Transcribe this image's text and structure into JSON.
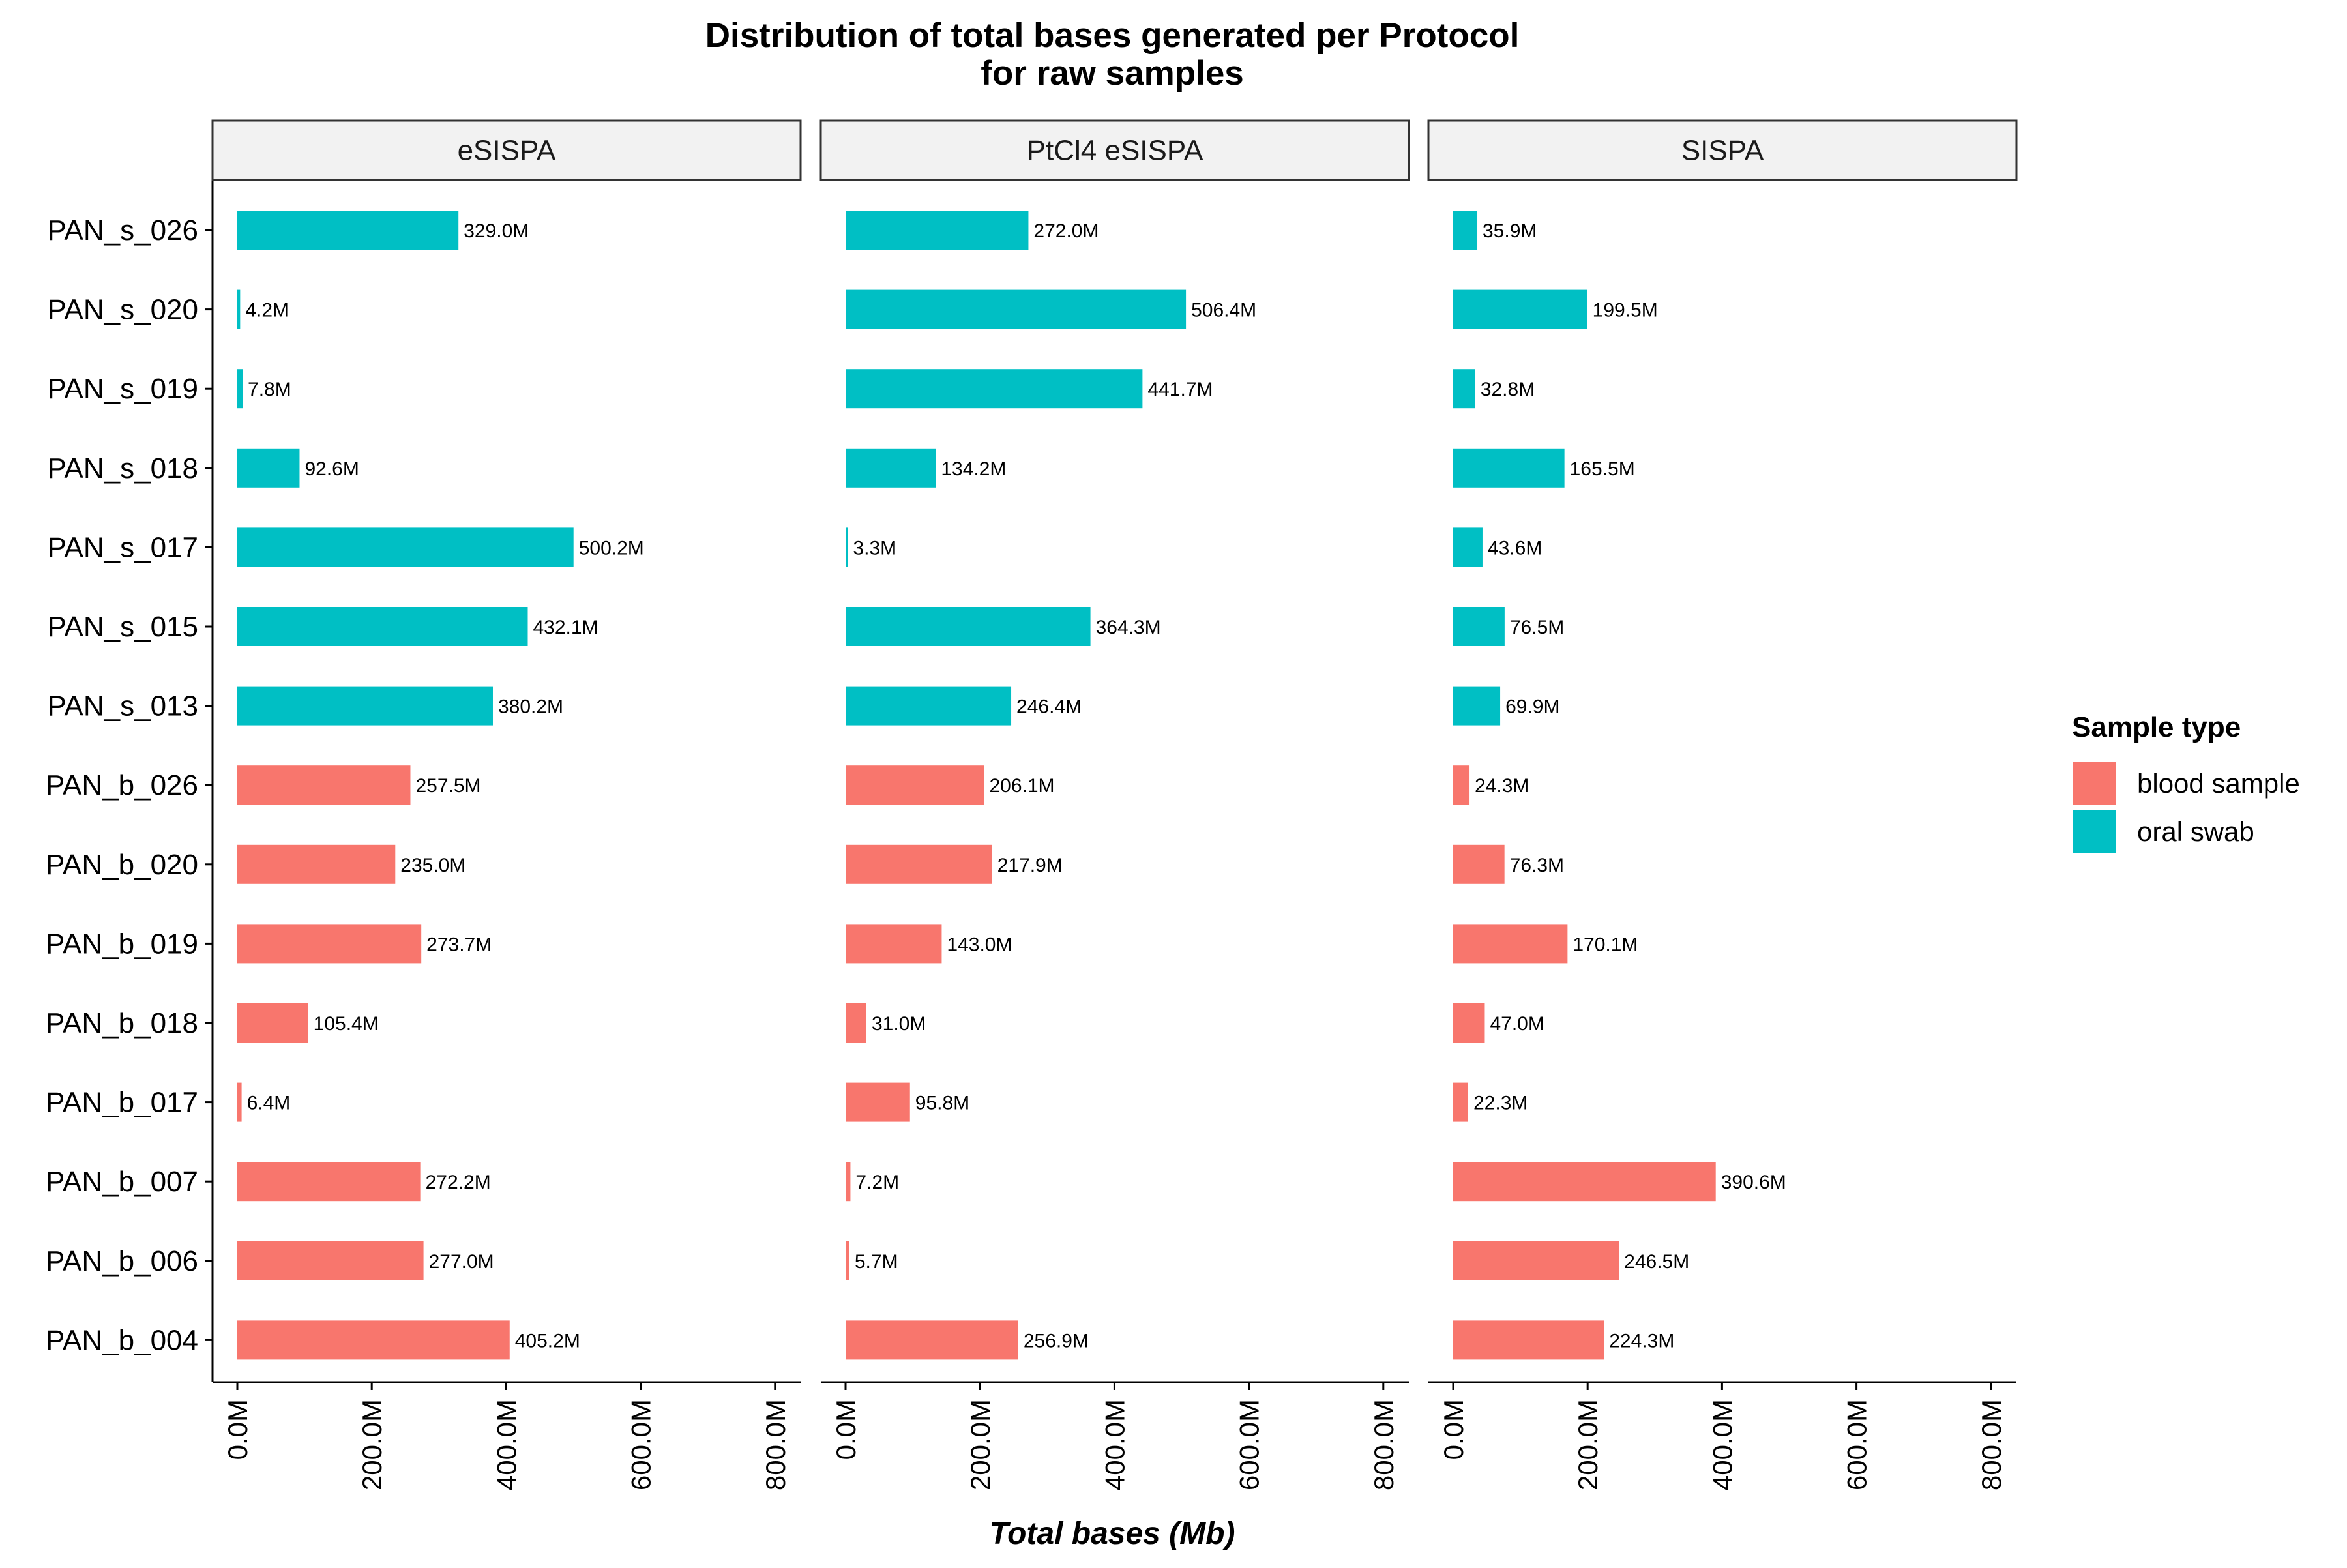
{
  "chart_data": {
    "type": "bar",
    "orientation": "horizontal",
    "title": "Distribution of total bases generated per Protocol\nfor raw samples",
    "xlabel": "Total bases (Mb)",
    "ylabel": "",
    "xlim": [
      0,
      800
    ],
    "x_ticks": [
      0,
      200,
      400,
      600,
      800
    ],
    "x_tick_labels": [
      "0.0M",
      "200.0M",
      "400.0M",
      "600.0M",
      "800.0M"
    ],
    "grid": false,
    "legend": {
      "title": "Sample type",
      "position": "right",
      "entries": [
        {
          "name": "blood sample",
          "color": "#F8766D"
        },
        {
          "name": "oral swab",
          "color": "#00BFC4"
        }
      ]
    },
    "categories": [
      "PAN_s_026",
      "PAN_s_020",
      "PAN_s_019",
      "PAN_s_018",
      "PAN_s_017",
      "PAN_s_015",
      "PAN_s_013",
      "PAN_b_026",
      "PAN_b_020",
      "PAN_b_019",
      "PAN_b_018",
      "PAN_b_017",
      "PAN_b_007",
      "PAN_b_006",
      "PAN_b_004"
    ],
    "category_types": [
      "oral swab",
      "oral swab",
      "oral swab",
      "oral swab",
      "oral swab",
      "oral swab",
      "oral swab",
      "blood sample",
      "blood sample",
      "blood sample",
      "blood sample",
      "blood sample",
      "blood sample",
      "blood sample",
      "blood sample"
    ],
    "panels": [
      {
        "name": "eSISPA",
        "values": [
          329.0,
          4.2,
          7.8,
          92.6,
          500.2,
          432.1,
          380.2,
          257.5,
          235.0,
          273.7,
          105.4,
          6.4,
          272.2,
          277.0,
          405.2
        ],
        "labels": [
          "329.0M",
          "4.2M",
          "7.8M",
          "92.6M",
          "500.2M",
          "432.1M",
          "380.2M",
          "257.5M",
          "235.0M",
          "273.7M",
          "105.4M",
          "6.4M",
          "272.2M",
          "277.0M",
          "405.2M"
        ]
      },
      {
        "name": "PtCl4 eSISPA",
        "values": [
          272.0,
          506.4,
          441.7,
          134.2,
          3.3,
          364.3,
          246.4,
          206.1,
          217.9,
          143.0,
          31.0,
          95.8,
          7.2,
          5.7,
          256.9
        ],
        "labels": [
          "272.0M",
          "506.4M",
          "441.7M",
          "134.2M",
          "3.3M",
          "364.3M",
          "246.4M",
          "206.1M",
          "217.9M",
          "143.0M",
          "31.0M",
          "95.8M",
          "7.2M",
          "5.7M",
          "256.9M"
        ]
      },
      {
        "name": "SISPA",
        "values": [
          35.9,
          199.5,
          32.8,
          165.5,
          43.6,
          76.5,
          69.9,
          24.3,
          76.3,
          170.1,
          47.0,
          22.3,
          390.6,
          246.5,
          224.3
        ],
        "labels": [
          "35.9M",
          "199.5M",
          "32.8M",
          "165.5M",
          "43.6M",
          "76.5M",
          "69.9M",
          "24.3M",
          "76.3M",
          "170.1M",
          "47.0M",
          "22.3M",
          "390.6M",
          "246.5M",
          "224.3M"
        ]
      }
    ]
  }
}
